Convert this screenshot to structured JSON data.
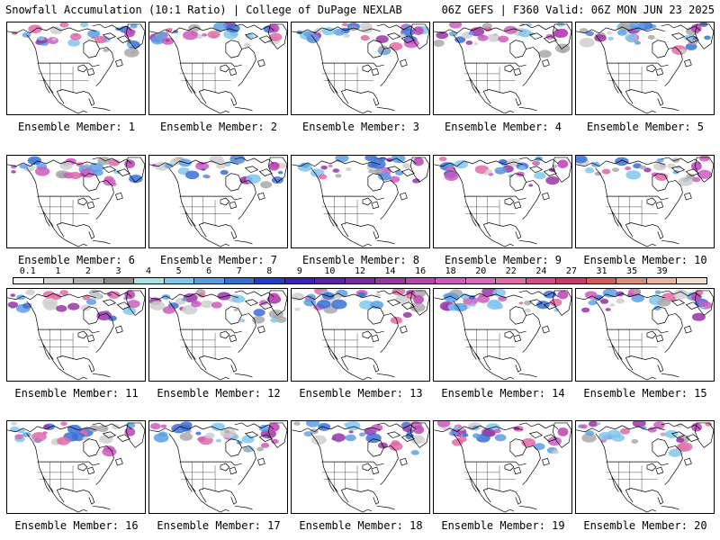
{
  "header": {
    "left": "Snowfall Accumulation (10:1 Ratio) | College of DuPage NEXLAB",
    "right": "06Z GEFS | F360 Valid: 06Z MON JUN 23 2025"
  },
  "members": [
    {
      "label": "Ensemble Member: 1"
    },
    {
      "label": "Ensemble Member: 2"
    },
    {
      "label": "Ensemble Member: 3"
    },
    {
      "label": "Ensemble Member: 4"
    },
    {
      "label": "Ensemble Member: 5"
    },
    {
      "label": "Ensemble Member: 6"
    },
    {
      "label": "Ensemble Member: 7"
    },
    {
      "label": "Ensemble Member: 8"
    },
    {
      "label": "Ensemble Member: 9"
    },
    {
      "label": "Ensemble Member: 10"
    },
    {
      "label": "Ensemble Member: 11"
    },
    {
      "label": "Ensemble Member: 12"
    },
    {
      "label": "Ensemble Member: 13"
    },
    {
      "label": "Ensemble Member: 14"
    },
    {
      "label": "Ensemble Member: 15"
    },
    {
      "label": "Ensemble Member: 16"
    },
    {
      "label": "Ensemble Member: 17"
    },
    {
      "label": "Ensemble Member: 18"
    },
    {
      "label": "Ensemble Member: 19"
    },
    {
      "label": "Ensemble Member: 20"
    }
  ],
  "legend": {
    "ticks": [
      "0.1",
      "1",
      "2",
      "3",
      "4",
      "5",
      "6",
      "7",
      "8",
      "9",
      "10",
      "12",
      "14",
      "16",
      "18",
      "20",
      "22",
      "24",
      "27",
      "31",
      "35",
      "39"
    ],
    "colors": [
      "#f2f2f2",
      "#d6d6d6",
      "#b3b3b3",
      "#8c8c8c",
      "#a8e6e6",
      "#7fc7ef",
      "#5a9fe6",
      "#3a6fd6",
      "#1f3fc8",
      "#3a1fb8",
      "#5a24a8",
      "#7a2aa0",
      "#9a34a8",
      "#b646b2",
      "#cc5cc0",
      "#d86ac0",
      "#e06aa8",
      "#d84a8a",
      "#cc3a6a",
      "#d65a5a",
      "#e08a7a",
      "#ecb4a0",
      "#f5dcc8"
    ]
  }
}
